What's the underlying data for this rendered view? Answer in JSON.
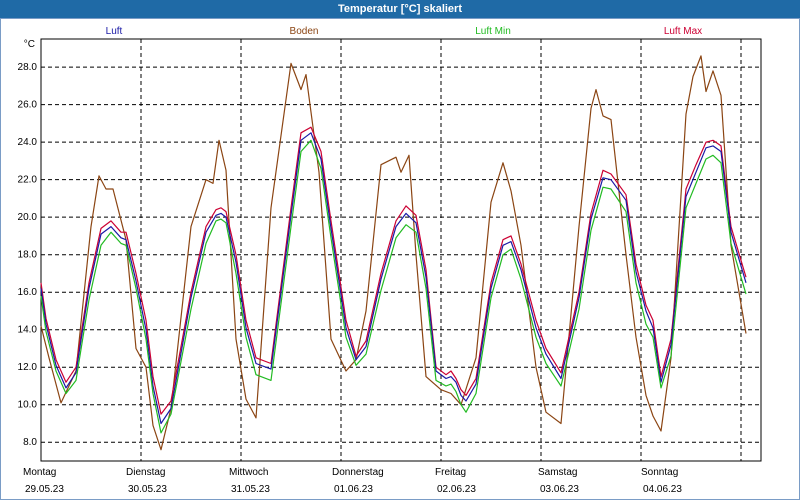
{
  "window": {
    "title": "Temperatur [°C] skaliert"
  },
  "chart_data": {
    "type": "line",
    "title": "Temperatur [°C] skaliert",
    "ylabel": "°C",
    "ylim": [
      7,
      29.5
    ],
    "yticks": [
      8.0,
      10.0,
      12.0,
      14.0,
      16.0,
      18.0,
      20.0,
      22.0,
      24.0,
      26.0,
      28.0
    ],
    "xlim": [
      0,
      7.2
    ],
    "grid": true,
    "legend_position": "top",
    "days": [
      {
        "name": "Montag",
        "date": "29.05.23",
        "x": 0
      },
      {
        "name": "Dienstag",
        "date": "30.05.23",
        "x": 1
      },
      {
        "name": "Mittwoch",
        "date": "31.05.23",
        "x": 2
      },
      {
        "name": "Donnerstag",
        "date": "01.06.23",
        "x": 3
      },
      {
        "name": "Freitag",
        "date": "02.06.23",
        "x": 4
      },
      {
        "name": "Samstag",
        "date": "03.06.23",
        "x": 5
      },
      {
        "name": "Sonntag",
        "date": "04.06.23",
        "x": 6
      }
    ],
    "series": [
      {
        "name": "Boden",
        "color": "#8b4513",
        "x": [
          0,
          0.08,
          0.2,
          0.35,
          0.5,
          0.58,
          0.65,
          0.72,
          0.85,
          0.95,
          1.05,
          1.12,
          1.2,
          1.3,
          1.5,
          1.65,
          1.72,
          1.78,
          1.85,
          1.95,
          2.05,
          2.15,
          2.3,
          2.5,
          2.6,
          2.65,
          2.72,
          2.78,
          2.9,
          3.05,
          3.15,
          3.25,
          3.4,
          3.55,
          3.6,
          3.68,
          3.75,
          3.85,
          4.0,
          4.1,
          4.2,
          4.35,
          4.5,
          4.62,
          4.7,
          4.8,
          4.95,
          5.05,
          5.2,
          5.38,
          5.5,
          5.55,
          5.62,
          5.7,
          5.85,
          5.95,
          6.05,
          6.12,
          6.2,
          6.3,
          6.45,
          6.52,
          6.6,
          6.65,
          6.72,
          6.8,
          6.9,
          7.05
        ],
        "values": [
          14.2,
          12.5,
          10.1,
          11.8,
          19.5,
          22.2,
          21.5,
          21.5,
          18.8,
          13.0,
          12.0,
          8.9,
          7.6,
          9.8,
          19.5,
          22.0,
          21.8,
          24.1,
          22.5,
          13.5,
          10.3,
          9.3,
          20.5,
          28.2,
          26.8,
          27.6,
          24.8,
          22.4,
          13.5,
          11.8,
          12.4,
          15.0,
          22.8,
          23.2,
          22.4,
          23.3,
          18.0,
          11.5,
          10.8,
          10.6,
          10.0,
          12.5,
          20.8,
          22.9,
          21.4,
          18.5,
          12.0,
          9.6,
          9.0,
          19.5,
          25.8,
          26.8,
          25.4,
          25.2,
          18.0,
          13.6,
          10.5,
          9.4,
          8.6,
          12.5,
          25.5,
          27.5,
          28.6,
          26.7,
          27.8,
          26.5,
          18.5,
          13.8
        ]
      },
      {
        "name": "Luft Max",
        "color": "#cc0033",
        "x": [
          0,
          0.05,
          0.15,
          0.25,
          0.35,
          0.48,
          0.6,
          0.7,
          0.8,
          0.85,
          0.95,
          1.05,
          1.12,
          1.2,
          1.3,
          1.5,
          1.65,
          1.75,
          1.8,
          1.85,
          1.95,
          2.05,
          2.15,
          2.3,
          2.5,
          2.6,
          2.7,
          2.8,
          2.9,
          3.05,
          3.15,
          3.25,
          3.4,
          3.55,
          3.65,
          3.75,
          3.85,
          3.95,
          4.05,
          4.1,
          4.15,
          4.2,
          4.25,
          4.35,
          4.5,
          4.62,
          4.7,
          4.8,
          4.95,
          5.05,
          5.2,
          5.38,
          5.5,
          5.62,
          5.7,
          5.85,
          5.95,
          6.05,
          6.12,
          6.2,
          6.3,
          6.45,
          6.55,
          6.65,
          6.72,
          6.8,
          6.9,
          7.05
        ],
        "values": [
          16.5,
          14.6,
          12.4,
          11.2,
          12.0,
          16.5,
          19.4,
          19.8,
          19.2,
          19.2,
          17.0,
          14.5,
          11.5,
          9.5,
          10.2,
          16.0,
          19.5,
          20.4,
          20.5,
          20.3,
          18.0,
          14.5,
          12.5,
          12.2,
          20.5,
          24.5,
          24.8,
          23.5,
          19.8,
          14.5,
          12.6,
          13.4,
          17.0,
          19.8,
          20.6,
          20.1,
          17.2,
          12.0,
          11.6,
          11.8,
          11.4,
          10.8,
          10.5,
          11.4,
          16.5,
          18.8,
          19.0,
          17.5,
          14.5,
          13.0,
          11.7,
          16.0,
          20.2,
          22.5,
          22.3,
          21.2,
          17.5,
          15.3,
          14.5,
          11.5,
          13.5,
          21.5,
          22.8,
          24.0,
          24.1,
          23.8,
          19.5,
          16.8
        ]
      },
      {
        "name": "Luft",
        "color": "#1a1aa6",
        "x": [
          0,
          0.05,
          0.15,
          0.25,
          0.35,
          0.48,
          0.6,
          0.7,
          0.8,
          0.85,
          0.95,
          1.05,
          1.12,
          1.2,
          1.3,
          1.5,
          1.65,
          1.75,
          1.8,
          1.85,
          1.95,
          2.05,
          2.15,
          2.3,
          2.5,
          2.6,
          2.7,
          2.8,
          2.9,
          3.05,
          3.15,
          3.25,
          3.4,
          3.55,
          3.65,
          3.75,
          3.85,
          3.95,
          4.05,
          4.1,
          4.15,
          4.2,
          4.25,
          4.35,
          4.5,
          4.62,
          4.7,
          4.8,
          4.95,
          5.05,
          5.2,
          5.38,
          5.5,
          5.62,
          5.7,
          5.85,
          5.95,
          6.05,
          6.12,
          6.2,
          6.3,
          6.45,
          6.55,
          6.65,
          6.72,
          6.8,
          6.9,
          7.05
        ],
        "values": [
          16.2,
          14.3,
          12.1,
          10.9,
          11.7,
          16.2,
          19.1,
          19.5,
          18.9,
          18.8,
          16.6,
          14.0,
          11.0,
          9.0,
          9.8,
          15.7,
          19.2,
          20.1,
          20.2,
          20.0,
          17.6,
          14.1,
          12.2,
          11.9,
          20.1,
          24.1,
          24.5,
          23.1,
          19.4,
          14.1,
          12.4,
          13.1,
          16.7,
          19.5,
          20.2,
          19.7,
          16.8,
          11.8,
          11.4,
          11.5,
          11.2,
          10.5,
          10.2,
          11.1,
          16.2,
          18.5,
          18.7,
          17.2,
          14.1,
          12.7,
          11.4,
          15.7,
          19.9,
          22.1,
          22.0,
          20.9,
          17.1,
          15.0,
          14.1,
          11.2,
          13.2,
          21.1,
          22.4,
          23.7,
          23.8,
          23.5,
          19.2,
          16.5
        ]
      },
      {
        "name": "Luft Min",
        "color": "#22bb22",
        "x": [
          0,
          0.05,
          0.15,
          0.25,
          0.35,
          0.48,
          0.6,
          0.7,
          0.8,
          0.85,
          0.95,
          1.05,
          1.12,
          1.2,
          1.3,
          1.5,
          1.65,
          1.75,
          1.8,
          1.85,
          1.95,
          2.05,
          2.15,
          2.3,
          2.5,
          2.6,
          2.7,
          2.8,
          2.9,
          3.05,
          3.15,
          3.25,
          3.4,
          3.55,
          3.65,
          3.75,
          3.85,
          3.95,
          4.05,
          4.1,
          4.15,
          4.2,
          4.25,
          4.35,
          4.5,
          4.62,
          4.7,
          4.8,
          4.95,
          5.05,
          5.2,
          5.38,
          5.5,
          5.62,
          5.7,
          5.85,
          5.95,
          6.05,
          6.12,
          6.2,
          6.3,
          6.45,
          6.55,
          6.65,
          6.72,
          6.8,
          6.9,
          7.05
        ],
        "values": [
          15.8,
          13.9,
          11.8,
          10.6,
          11.3,
          15.6,
          18.5,
          19.2,
          18.6,
          18.5,
          16.2,
          13.5,
          10.6,
          8.5,
          9.5,
          15.1,
          18.6,
          19.8,
          19.9,
          19.7,
          17.0,
          13.6,
          11.6,
          11.3,
          19.5,
          23.5,
          24.1,
          22.6,
          18.9,
          13.6,
          12.1,
          12.7,
          16.1,
          18.9,
          19.6,
          19.2,
          16.2,
          11.3,
          11.0,
          11.1,
          10.7,
          10.0,
          9.6,
          10.6,
          15.7,
          18.0,
          18.3,
          16.7,
          13.6,
          12.2,
          11.0,
          15.1,
          19.3,
          21.6,
          21.5,
          20.3,
          16.5,
          14.3,
          13.6,
          10.9,
          12.6,
          20.5,
          21.8,
          23.1,
          23.3,
          22.9,
          18.6,
          15.9
        ]
      }
    ]
  }
}
